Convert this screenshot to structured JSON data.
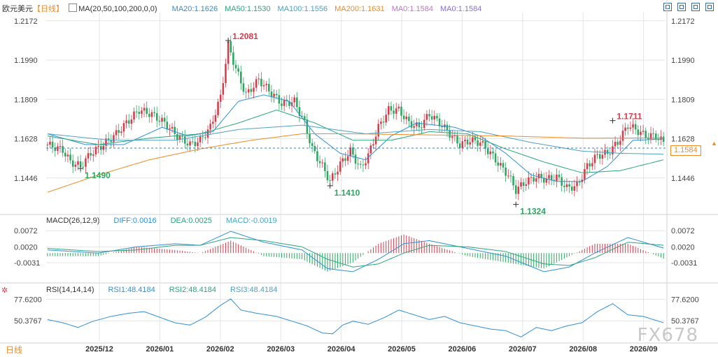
{
  "header": {
    "symbol": "欧元美元",
    "period": "【日线】",
    "ma_label": "MA(20,50,100,200,0,0)",
    "ma_values": [
      {
        "text": "MA20:1.1626",
        "color": "#2f8fd6"
      },
      {
        "text": "MA50:1.1530",
        "color": "#28a67c"
      },
      {
        "text": "MA100:1.1556",
        "color": "#4aa3c4"
      },
      {
        "text": "MA200:1.1631",
        "color": "#f08a24"
      },
      {
        "text": "MA0:1.1584",
        "color": "#c66fd1"
      },
      {
        "text": "MA0:1.1584",
        "color": "#8a70d6"
      }
    ]
  },
  "toolbar": {
    "icons": [
      "select-icon",
      "crosshair-icon",
      "zoom-icon",
      "fullscreen-icon"
    ]
  },
  "macd_legend": {
    "label": "MACD(26,12,9)",
    "values": [
      {
        "text": "DIFF:0.0016",
        "color": "#2f8fd6"
      },
      {
        "text": "DEA:0.0025",
        "color": "#28a67c"
      },
      {
        "text": "MACD:-0.0019",
        "color": "#4aa3c4"
      }
    ]
  },
  "rsi_legend": {
    "label": "RSI(14,14,14)",
    "values": [
      {
        "text": "RSI1:48.4184",
        "color": "#2f8fd6"
      },
      {
        "text": "RSI2:48.4184",
        "color": "#28a67c"
      },
      {
        "text": "RSI3:48.4184",
        "color": "#4aa3c4"
      }
    ]
  },
  "price_tag": "1.1584",
  "bottom_label": "日线",
  "watermark": "FX678",
  "colors": {
    "up": "#d83a4a",
    "down": "#2aa760",
    "grid": "#e4e4e4",
    "dash": "#3c78b4"
  },
  "chart_data": [
    {
      "type": "candlestick",
      "title": "欧元美元",
      "y_ticks": [
        1.2172,
        1.199,
        1.1809,
        1.1628,
        1.1446
      ],
      "ylim": [
        1.13,
        1.221
      ],
      "x_ticks": [
        "2025/12",
        "2026/01",
        "2026/02",
        "2026/03",
        "2026/04",
        "2026/05",
        "2026/06",
        "2026/07",
        "2026/08",
        "2026/09"
      ],
      "current_price": 1.1584,
      "annotations": [
        {
          "text": "1.2081",
          "value": 1.2081,
          "kind": "high",
          "color": "#d83a4a"
        },
        {
          "text": "1.1490",
          "value": 1.149,
          "kind": "low",
          "color": "#2aa760"
        },
        {
          "text": "1.1410",
          "value": 1.141,
          "kind": "low",
          "color": "#2aa760"
        },
        {
          "text": "1.1324",
          "value": 1.1324,
          "kind": "low",
          "color": "#2aa760"
        },
        {
          "text": "1.1711",
          "value": 1.1711,
          "kind": "high",
          "color": "#d83a4a"
        }
      ],
      "close_path": [
        [
          0,
          1.16
        ],
        [
          6,
          1.1575
        ],
        [
          9,
          1.152
        ],
        [
          13,
          1.15
        ],
        [
          17,
          1.156
        ],
        [
          22,
          1.16
        ],
        [
          27,
          1.165
        ],
        [
          31,
          1.17
        ],
        [
          36,
          1.176
        ],
        [
          41,
          1.174
        ],
        [
          46,
          1.17
        ],
        [
          51,
          1.164
        ],
        [
          56,
          1.16
        ],
        [
          60,
          1.162
        ],
        [
          64,
          1.168
        ],
        [
          68,
          1.182
        ],
        [
          71,
          1.206
        ],
        [
          74,
          1.195
        ],
        [
          78,
          1.183
        ],
        [
          83,
          1.19
        ],
        [
          87,
          1.185
        ],
        [
          92,
          1.179
        ],
        [
          97,
          1.18
        ],
        [
          101,
          1.17
        ],
        [
          104,
          1.158
        ],
        [
          108,
          1.15
        ],
        [
          111,
          1.143
        ],
        [
          115,
          1.151
        ],
        [
          119,
          1.157
        ],
        [
          123,
          1.149
        ],
        [
          126,
          1.155
        ],
        [
          130,
          1.168
        ],
        [
          134,
          1.176
        ],
        [
          138,
          1.176
        ],
        [
          142,
          1.17
        ],
        [
          146,
          1.168
        ],
        [
          150,
          1.174
        ],
        [
          154,
          1.17
        ],
        [
          158,
          1.165
        ],
        [
          162,
          1.16
        ],
        [
          166,
          1.162
        ],
        [
          170,
          1.161
        ],
        [
          174,
          1.156
        ],
        [
          178,
          1.15
        ],
        [
          181,
          1.146
        ],
        [
          184,
          1.139
        ],
        [
          188,
          1.143
        ],
        [
          192,
          1.145
        ],
        [
          196,
          1.144
        ],
        [
          200,
          1.145
        ],
        [
          204,
          1.14
        ],
        [
          208,
          1.141
        ],
        [
          212,
          1.15
        ],
        [
          216,
          1.155
        ],
        [
          220,
          1.156
        ],
        [
          224,
          1.161
        ],
        [
          228,
          1.169
        ],
        [
          231,
          1.167
        ],
        [
          235,
          1.164
        ],
        [
          239,
          1.164
        ],
        [
          242,
          1.161
        ]
      ],
      "ma_series": [
        {
          "name": "MA20",
          "color": "#2f8fd6",
          "points": [
            [
              0,
              1.165
            ],
            [
              15,
              1.16
            ],
            [
              30,
              1.16
            ],
            [
              45,
              1.168
            ],
            [
              55,
              1.164
            ],
            [
              65,
              1.166
            ],
            [
              75,
              1.18
            ],
            [
              85,
              1.183
            ],
            [
              95,
              1.18
            ],
            [
              105,
              1.165
            ],
            [
              115,
              1.156
            ],
            [
              125,
              1.153
            ],
            [
              135,
              1.164
            ],
            [
              145,
              1.17
            ],
            [
              160,
              1.168
            ],
            [
              170,
              1.164
            ],
            [
              180,
              1.156
            ],
            [
              190,
              1.146
            ],
            [
              200,
              1.143
            ],
            [
              210,
              1.143
            ],
            [
              220,
              1.15
            ],
            [
              230,
              1.162
            ],
            [
              242,
              1.1626
            ]
          ]
        },
        {
          "name": "MA50",
          "color": "#28a67c",
          "points": [
            [
              0,
              1.164
            ],
            [
              20,
              1.16
            ],
            [
              40,
              1.163
            ],
            [
              60,
              1.165
            ],
            [
              75,
              1.17
            ],
            [
              90,
              1.176
            ],
            [
              105,
              1.17
            ],
            [
              120,
              1.162
            ],
            [
              135,
              1.162
            ],
            [
              150,
              1.166
            ],
            [
              165,
              1.165
            ],
            [
              180,
              1.158
            ],
            [
              195,
              1.152
            ],
            [
              210,
              1.147
            ],
            [
              225,
              1.148
            ],
            [
              242,
              1.153
            ]
          ]
        },
        {
          "name": "MA100",
          "color": "#4aa3c4",
          "points": [
            [
              0,
              1.165
            ],
            [
              25,
              1.162
            ],
            [
              50,
              1.162
            ],
            [
              75,
              1.167
            ],
            [
              100,
              1.169
            ],
            [
              125,
              1.165
            ],
            [
              150,
              1.167
            ],
            [
              170,
              1.166
            ],
            [
              190,
              1.161
            ],
            [
              210,
              1.157
            ],
            [
              225,
              1.156
            ],
            [
              242,
              1.1556
            ]
          ]
        },
        {
          "name": "MA200",
          "color": "#f08a24",
          "points": [
            [
              0,
              1.138
            ],
            [
              20,
              1.146
            ],
            [
              40,
              1.153
            ],
            [
              60,
              1.158
            ],
            [
              80,
              1.162
            ],
            [
              100,
              1.165
            ],
            [
              120,
              1.165
            ],
            [
              150,
              1.1645
            ],
            [
              180,
              1.164
            ],
            [
              210,
              1.163
            ],
            [
              242,
              1.1631
            ]
          ]
        }
      ]
    },
    {
      "type": "macd",
      "title": "MACD(26,12,9)",
      "y_ticks": [
        0.0072,
        0.002,
        -0.0031
      ],
      "ylim": [
        -0.0085,
        0.0095
      ],
      "diff_path": [
        [
          0,
          0.001
        ],
        [
          20,
          0.0
        ],
        [
          35,
          0.002
        ],
        [
          50,
          0.003
        ],
        [
          60,
          0.0025
        ],
        [
          72,
          0.007
        ],
        [
          85,
          0.0035
        ],
        [
          100,
          0.001
        ],
        [
          110,
          -0.005
        ],
        [
          120,
          -0.006
        ],
        [
          130,
          -0.002
        ],
        [
          140,
          0.003
        ],
        [
          150,
          0.004
        ],
        [
          165,
          0.0015
        ],
        [
          180,
          -0.001
        ],
        [
          195,
          -0.006
        ],
        [
          205,
          -0.0045
        ],
        [
          215,
          0.0
        ],
        [
          228,
          0.005
        ],
        [
          242,
          0.0016
        ]
      ],
      "dea_path": [
        [
          0,
          0.0015
        ],
        [
          20,
          0.0005
        ],
        [
          35,
          0.001
        ],
        [
          50,
          0.0025
        ],
        [
          60,
          0.0025
        ],
        [
          72,
          0.005
        ],
        [
          85,
          0.004
        ],
        [
          100,
          0.002
        ],
        [
          110,
          -0.002
        ],
        [
          120,
          -0.0045
        ],
        [
          130,
          -0.0035
        ],
        [
          140,
          0.0
        ],
        [
          150,
          0.0025
        ],
        [
          165,
          0.002
        ],
        [
          180,
          0.0005
        ],
        [
          195,
          -0.0035
        ],
        [
          205,
          -0.004
        ],
        [
          215,
          -0.0015
        ],
        [
          228,
          0.0035
        ],
        [
          242,
          0.0025
        ]
      ]
    },
    {
      "type": "rsi",
      "title": "RSI(14,14,14)",
      "y_ticks": [
        77.62,
        50.3767
      ],
      "ylim": [
        25,
        85
      ],
      "rsi_path": [
        [
          0,
          52
        ],
        [
          6,
          48
        ],
        [
          12,
          42
        ],
        [
          18,
          50
        ],
        [
          25,
          56
        ],
        [
          32,
          60
        ],
        [
          38,
          62
        ],
        [
          44,
          55
        ],
        [
          50,
          48
        ],
        [
          56,
          45
        ],
        [
          62,
          55
        ],
        [
          68,
          70
        ],
        [
          72,
          78
        ],
        [
          76,
          64
        ],
        [
          82,
          60
        ],
        [
          90,
          56
        ],
        [
          96,
          50
        ],
        [
          102,
          44
        ],
        [
          108,
          35
        ],
        [
          112,
          34
        ],
        [
          116,
          45
        ],
        [
          120,
          50
        ],
        [
          126,
          46
        ],
        [
          132,
          54
        ],
        [
          138,
          64
        ],
        [
          144,
          58
        ],
        [
          150,
          52
        ],
        [
          156,
          56
        ],
        [
          162,
          48
        ],
        [
          168,
          44
        ],
        [
          174,
          40
        ],
        [
          180,
          38
        ],
        [
          186,
          30
        ],
        [
          192,
          42
        ],
        [
          198,
          38
        ],
        [
          204,
          44
        ],
        [
          210,
          48
        ],
        [
          216,
          62
        ],
        [
          222,
          72
        ],
        [
          228,
          58
        ],
        [
          234,
          56
        ],
        [
          242,
          48
        ]
      ]
    }
  ]
}
